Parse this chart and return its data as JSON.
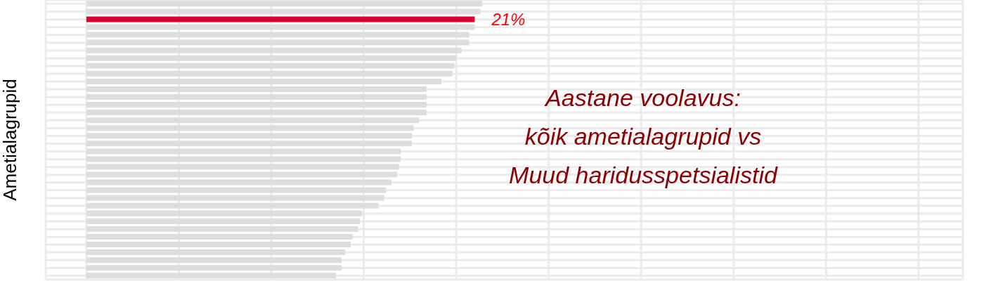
{
  "chart_data": {
    "type": "bar",
    "orientation": "horizontal",
    "ylabel": "Ametialagrupid",
    "annotations": [
      "Aastane voolavus:",
      "kõik ametialagrupid vs",
      "Muud haridusspetsialistid"
    ],
    "categories": [
      null,
      null,
      null,
      null,
      null,
      null,
      null,
      null,
      null,
      null,
      null,
      null,
      null,
      null,
      null,
      null,
      null,
      null,
      null,
      null,
      null,
      null,
      null,
      null,
      null,
      null,
      null,
      null,
      null,
      null,
      null,
      null,
      null,
      null,
      null,
      null
    ],
    "values": [
      21.4,
      21.3,
      21.0,
      21.0,
      20.7,
      20.7,
      20.3,
      20.0,
      19.9,
      19.8,
      19.2,
      18.4,
      18.4,
      18.4,
      18.4,
      18.0,
      17.7,
      17.6,
      17.6,
      17.0,
      17.0,
      16.9,
      16.8,
      16.5,
      16.2,
      16.1,
      15.8,
      14.9,
      14.8,
      14.7,
      14.4,
      14.3,
      14.0,
      13.8,
      13.8,
      13.5
    ],
    "colors": [
      "#dddddd",
      "#dddddd",
      "#dc0030",
      "#dddddd",
      "#dddddd",
      "#dddddd",
      "#dddddd",
      "#dddddd",
      "#dddddd",
      "#dddddd",
      "#dddddd",
      "#dddddd",
      "#dddddd",
      "#dddddd",
      "#dddddd",
      "#dddddd",
      "#dddddd",
      "#dddddd",
      "#dddddd",
      "#dddddd",
      "#dddddd",
      "#dddddd",
      "#dddddd",
      "#dddddd",
      "#dddddd",
      "#dddddd",
      "#dddddd",
      "#dddddd",
      "#dddddd",
      "#dddddd",
      "#dddddd",
      "#dddddd",
      "#dddddd",
      "#dddddd",
      "#dddddd",
      "#dddddd"
    ],
    "value_labels": [
      null,
      null,
      "21%",
      null,
      null,
      null,
      null,
      null,
      null,
      null,
      null,
      null,
      null,
      null,
      null,
      null,
      null,
      null,
      null,
      null,
      null,
      null,
      null,
      null,
      null,
      null,
      null,
      null,
      null,
      null,
      null,
      null,
      null,
      null,
      null,
      null
    ],
    "xlim": [
      -2.2,
      47.4
    ],
    "xticks": [
      {
        "value": 0,
        "label": null
      },
      {
        "value": 5,
        "label": null
      },
      {
        "value": 10,
        "label": null
      },
      {
        "value": 15,
        "label": null
      },
      {
        "value": 20,
        "label": null
      },
      {
        "value": 25,
        "label": null
      },
      {
        "value": 30,
        "label": null
      },
      {
        "value": 35,
        "label": null
      },
      {
        "value": 40,
        "label": null
      },
      {
        "value": 45,
        "label": null
      }
    ],
    "grid": true
  }
}
